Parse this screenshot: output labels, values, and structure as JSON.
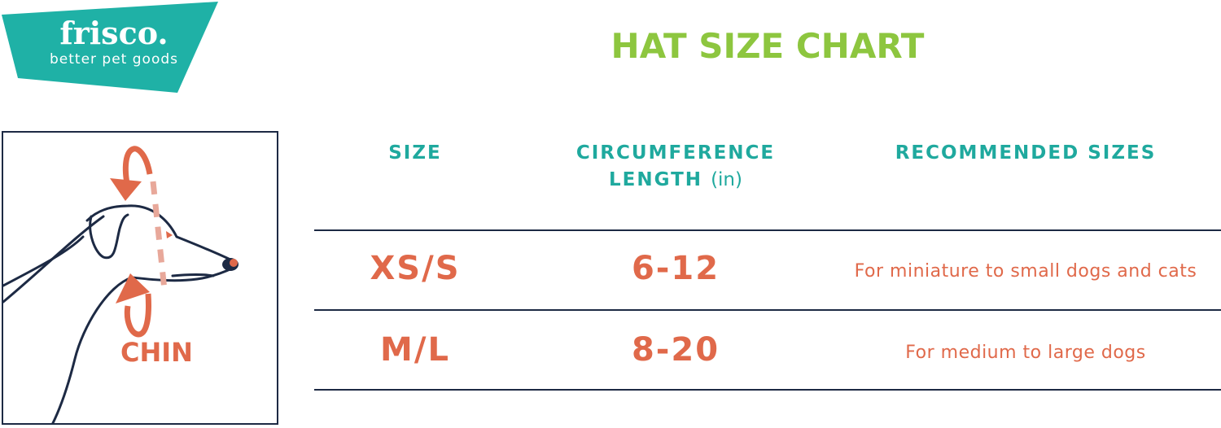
{
  "brand": {
    "name": "frisco.",
    "tagline": "better pet goods"
  },
  "title": "HAT SIZE CHART",
  "diagram": {
    "label": "CHIN"
  },
  "table": {
    "headers": {
      "size": "SIZE",
      "circumference_line1": "CIRCUMFERENCE",
      "circumference_line2": "LENGTH",
      "circumference_unit": "(in)",
      "recommended": "RECOMMENDED SIZES"
    },
    "rows": [
      {
        "size": "XS/S",
        "circumference": "6-12",
        "recommended": "For miniature to small dogs and cats"
      },
      {
        "size": "M/L",
        "circumference": "8-20",
        "recommended": "For medium to large dogs"
      }
    ]
  },
  "colors": {
    "teal": "#1fb1a6",
    "green": "#8dc63f",
    "orange": "#e0694a",
    "navy": "#1d2a44"
  }
}
